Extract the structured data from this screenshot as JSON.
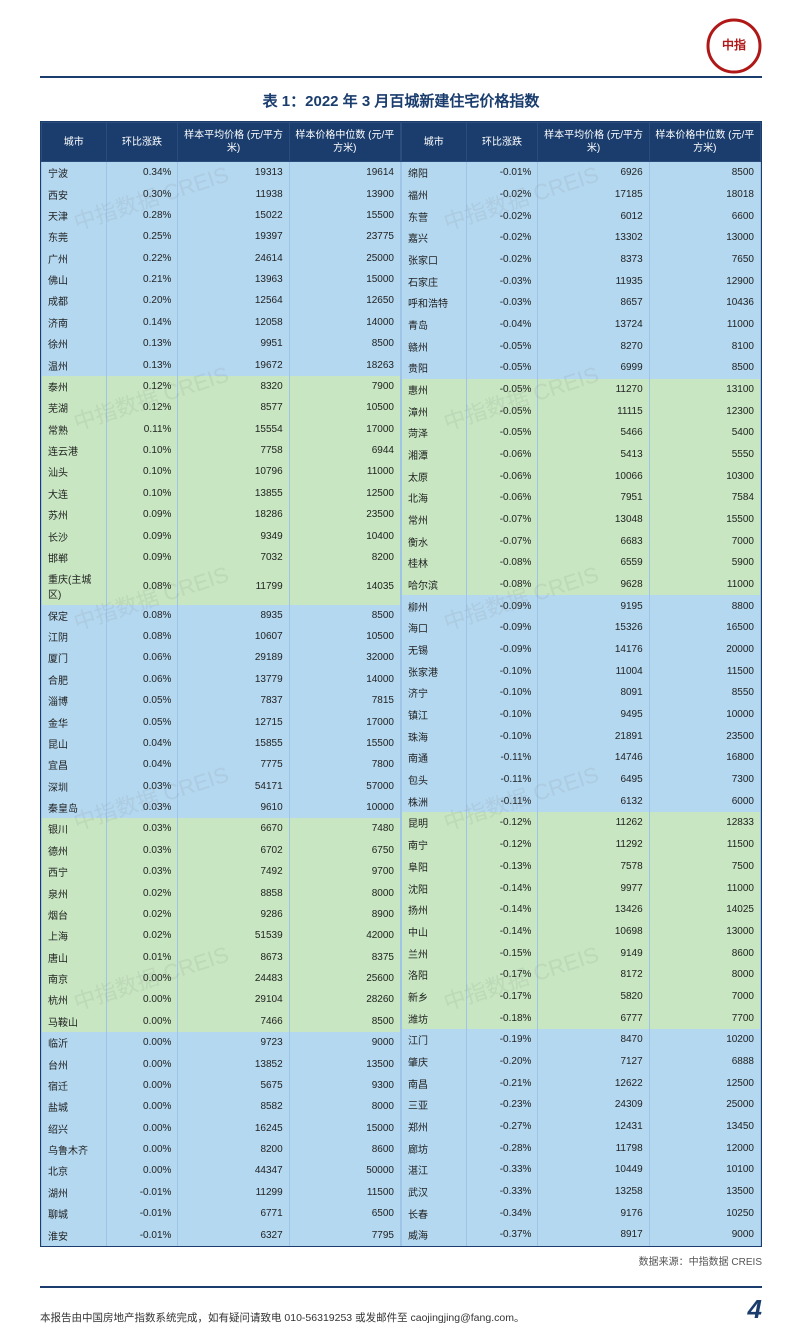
{
  "title": "表 1：2022 年 3 月百城新建住宅价格指数",
  "headers": {
    "city": "城市",
    "chg": "环比涨跌",
    "avg": "样本平均价格\n(元/平方米)",
    "med": "样本价格中位数\n(元/平方米)"
  },
  "colors": {
    "header_bg": "#1a3d6d",
    "header_fg": "#ffffff",
    "row_blue": "#b4d8f0",
    "row_green": "#c7e6c1",
    "divider": "#1a3d6d"
  },
  "watermark_text": "中指数据 CREIS",
  "source": "数据来源：中指数据 CREIS",
  "footer_text": "本报告由中国房地产指数系统完成，如有疑问请致电 010-56319253 或发邮件至 caojingjing@fang.com。",
  "page_number": "4",
  "logo_label": "CHINA INDEX ACADEMY",
  "left": [
    {
      "c": "宁波",
      "p": "0.34%",
      "a": "19313",
      "m": "19614",
      "band": "blue"
    },
    {
      "c": "西安",
      "p": "0.30%",
      "a": "11938",
      "m": "13900",
      "band": "blue"
    },
    {
      "c": "天津",
      "p": "0.28%",
      "a": "15022",
      "m": "15500",
      "band": "blue"
    },
    {
      "c": "东莞",
      "p": "0.25%",
      "a": "19397",
      "m": "23775",
      "band": "blue"
    },
    {
      "c": "广州",
      "p": "0.22%",
      "a": "24614",
      "m": "25000",
      "band": "blue"
    },
    {
      "c": "佛山",
      "p": "0.21%",
      "a": "13963",
      "m": "15000",
      "band": "blue"
    },
    {
      "c": "成都",
      "p": "0.20%",
      "a": "12564",
      "m": "12650",
      "band": "blue"
    },
    {
      "c": "济南",
      "p": "0.14%",
      "a": "12058",
      "m": "14000",
      "band": "blue"
    },
    {
      "c": "徐州",
      "p": "0.13%",
      "a": "9951",
      "m": "8500",
      "band": "blue"
    },
    {
      "c": "温州",
      "p": "0.13%",
      "a": "19672",
      "m": "18263",
      "band": "blue"
    },
    {
      "c": "泰州",
      "p": "0.12%",
      "a": "8320",
      "m": "7900",
      "band": "green"
    },
    {
      "c": "芜湖",
      "p": "0.12%",
      "a": "8577",
      "m": "10500",
      "band": "green"
    },
    {
      "c": "常熟",
      "p": "0.11%",
      "a": "15554",
      "m": "17000",
      "band": "green"
    },
    {
      "c": "连云港",
      "p": "0.10%",
      "a": "7758",
      "m": "6944",
      "band": "green"
    },
    {
      "c": "汕头",
      "p": "0.10%",
      "a": "10796",
      "m": "11000",
      "band": "green"
    },
    {
      "c": "大连",
      "p": "0.10%",
      "a": "13855",
      "m": "12500",
      "band": "green"
    },
    {
      "c": "苏州",
      "p": "0.09%",
      "a": "18286",
      "m": "23500",
      "band": "green"
    },
    {
      "c": "长沙",
      "p": "0.09%",
      "a": "9349",
      "m": "10400",
      "band": "green"
    },
    {
      "c": "邯郸",
      "p": "0.09%",
      "a": "7032",
      "m": "8200",
      "band": "green"
    },
    {
      "c": "重庆(主城区)",
      "p": "0.08%",
      "a": "11799",
      "m": "14035",
      "band": "green"
    },
    {
      "c": "保定",
      "p": "0.08%",
      "a": "8935",
      "m": "8500",
      "band": "blue"
    },
    {
      "c": "江阴",
      "p": "0.08%",
      "a": "10607",
      "m": "10500",
      "band": "blue"
    },
    {
      "c": "厦门",
      "p": "0.06%",
      "a": "29189",
      "m": "32000",
      "band": "blue"
    },
    {
      "c": "合肥",
      "p": "0.06%",
      "a": "13779",
      "m": "14000",
      "band": "blue"
    },
    {
      "c": "淄博",
      "p": "0.05%",
      "a": "7837",
      "m": "7815",
      "band": "blue"
    },
    {
      "c": "金华",
      "p": "0.05%",
      "a": "12715",
      "m": "17000",
      "band": "blue"
    },
    {
      "c": "昆山",
      "p": "0.04%",
      "a": "15855",
      "m": "15500",
      "band": "blue"
    },
    {
      "c": "宜昌",
      "p": "0.04%",
      "a": "7775",
      "m": "7800",
      "band": "blue"
    },
    {
      "c": "深圳",
      "p": "0.03%",
      "a": "54171",
      "m": "57000",
      "band": "blue"
    },
    {
      "c": "秦皇岛",
      "p": "0.03%",
      "a": "9610",
      "m": "10000",
      "band": "blue"
    },
    {
      "c": "银川",
      "p": "0.03%",
      "a": "6670",
      "m": "7480",
      "band": "green"
    },
    {
      "c": "德州",
      "p": "0.03%",
      "a": "6702",
      "m": "6750",
      "band": "green"
    },
    {
      "c": "西宁",
      "p": "0.03%",
      "a": "7492",
      "m": "9700",
      "band": "green"
    },
    {
      "c": "泉州",
      "p": "0.02%",
      "a": "8858",
      "m": "8000",
      "band": "green"
    },
    {
      "c": "烟台",
      "p": "0.02%",
      "a": "9286",
      "m": "8900",
      "band": "green"
    },
    {
      "c": "上海",
      "p": "0.02%",
      "a": "51539",
      "m": "42000",
      "band": "green"
    },
    {
      "c": "唐山",
      "p": "0.01%",
      "a": "8673",
      "m": "8375",
      "band": "green"
    },
    {
      "c": "南京",
      "p": "0.00%",
      "a": "24483",
      "m": "25600",
      "band": "green"
    },
    {
      "c": "杭州",
      "p": "0.00%",
      "a": "29104",
      "m": "28260",
      "band": "green"
    },
    {
      "c": "马鞍山",
      "p": "0.00%",
      "a": "7466",
      "m": "8500",
      "band": "green"
    },
    {
      "c": "临沂",
      "p": "0.00%",
      "a": "9723",
      "m": "9000",
      "band": "blue"
    },
    {
      "c": "台州",
      "p": "0.00%",
      "a": "13852",
      "m": "13500",
      "band": "blue"
    },
    {
      "c": "宿迁",
      "p": "0.00%",
      "a": "5675",
      "m": "9300",
      "band": "blue"
    },
    {
      "c": "盐城",
      "p": "0.00%",
      "a": "8582",
      "m": "8000",
      "band": "blue"
    },
    {
      "c": "绍兴",
      "p": "0.00%",
      "a": "16245",
      "m": "15000",
      "band": "blue"
    },
    {
      "c": "乌鲁木齐",
      "p": "0.00%",
      "a": "8200",
      "m": "8600",
      "band": "blue"
    },
    {
      "c": "北京",
      "p": "0.00%",
      "a": "44347",
      "m": "50000",
      "band": "blue"
    },
    {
      "c": "湖州",
      "p": "-0.01%",
      "a": "11299",
      "m": "11500",
      "band": "blue"
    },
    {
      "c": "聊城",
      "p": "-0.01%",
      "a": "6771",
      "m": "6500",
      "band": "blue"
    },
    {
      "c": "淮安",
      "p": "-0.01%",
      "a": "6327",
      "m": "7795",
      "band": "blue"
    }
  ],
  "right": [
    {
      "c": "绵阳",
      "p": "-0.01%",
      "a": "6926",
      "m": "8500",
      "band": "blue"
    },
    {
      "c": "福州",
      "p": "-0.02%",
      "a": "17185",
      "m": "18018",
      "band": "blue"
    },
    {
      "c": "东营",
      "p": "-0.02%",
      "a": "6012",
      "m": "6600",
      "band": "blue"
    },
    {
      "c": "嘉兴",
      "p": "-0.02%",
      "a": "13302",
      "m": "13000",
      "band": "blue"
    },
    {
      "c": "张家口",
      "p": "-0.02%",
      "a": "8373",
      "m": "7650",
      "band": "blue"
    },
    {
      "c": "石家庄",
      "p": "-0.03%",
      "a": "11935",
      "m": "12900",
      "band": "blue"
    },
    {
      "c": "呼和浩特",
      "p": "-0.03%",
      "a": "8657",
      "m": "10436",
      "band": "blue"
    },
    {
      "c": "青岛",
      "p": "-0.04%",
      "a": "13724",
      "m": "11000",
      "band": "blue"
    },
    {
      "c": "赣州",
      "p": "-0.05%",
      "a": "8270",
      "m": "8100",
      "band": "blue"
    },
    {
      "c": "贵阳",
      "p": "-0.05%",
      "a": "6999",
      "m": "8500",
      "band": "blue"
    },
    {
      "c": "惠州",
      "p": "-0.05%",
      "a": "11270",
      "m": "13100",
      "band": "green"
    },
    {
      "c": "漳州",
      "p": "-0.05%",
      "a": "11115",
      "m": "12300",
      "band": "green"
    },
    {
      "c": "菏泽",
      "p": "-0.05%",
      "a": "5466",
      "m": "5400",
      "band": "green"
    },
    {
      "c": "湘潭",
      "p": "-0.06%",
      "a": "5413",
      "m": "5550",
      "band": "green"
    },
    {
      "c": "太原",
      "p": "-0.06%",
      "a": "10066",
      "m": "10300",
      "band": "green"
    },
    {
      "c": "北海",
      "p": "-0.06%",
      "a": "7951",
      "m": "7584",
      "band": "green"
    },
    {
      "c": "常州",
      "p": "-0.07%",
      "a": "13048",
      "m": "15500",
      "band": "green"
    },
    {
      "c": "衡水",
      "p": "-0.07%",
      "a": "6683",
      "m": "7000",
      "band": "green"
    },
    {
      "c": "桂林",
      "p": "-0.08%",
      "a": "6559",
      "m": "5900",
      "band": "green"
    },
    {
      "c": "哈尔滨",
      "p": "-0.08%",
      "a": "9628",
      "m": "11000",
      "band": "green"
    },
    {
      "c": "柳州",
      "p": "-0.09%",
      "a": "9195",
      "m": "8800",
      "band": "blue"
    },
    {
      "c": "海口",
      "p": "-0.09%",
      "a": "15326",
      "m": "16500",
      "band": "blue"
    },
    {
      "c": "无锡",
      "p": "-0.09%",
      "a": "14176",
      "m": "20000",
      "band": "blue"
    },
    {
      "c": "张家港",
      "p": "-0.10%",
      "a": "11004",
      "m": "11500",
      "band": "blue"
    },
    {
      "c": "济宁",
      "p": "-0.10%",
      "a": "8091",
      "m": "8550",
      "band": "blue"
    },
    {
      "c": "镇江",
      "p": "-0.10%",
      "a": "9495",
      "m": "10000",
      "band": "blue"
    },
    {
      "c": "珠海",
      "p": "-0.10%",
      "a": "21891",
      "m": "23500",
      "band": "blue"
    },
    {
      "c": "南通",
      "p": "-0.11%",
      "a": "14746",
      "m": "16800",
      "band": "blue"
    },
    {
      "c": "包头",
      "p": "-0.11%",
      "a": "6495",
      "m": "7300",
      "band": "blue"
    },
    {
      "c": "株洲",
      "p": "-0.11%",
      "a": "6132",
      "m": "6000",
      "band": "blue"
    },
    {
      "c": "昆明",
      "p": "-0.12%",
      "a": "11262",
      "m": "12833",
      "band": "green"
    },
    {
      "c": "南宁",
      "p": "-0.12%",
      "a": "11292",
      "m": "11500",
      "band": "green"
    },
    {
      "c": "阜阳",
      "p": "-0.13%",
      "a": "7578",
      "m": "7500",
      "band": "green"
    },
    {
      "c": "沈阳",
      "p": "-0.14%",
      "a": "9977",
      "m": "11000",
      "band": "green"
    },
    {
      "c": "扬州",
      "p": "-0.14%",
      "a": "13426",
      "m": "14025",
      "band": "green"
    },
    {
      "c": "中山",
      "p": "-0.14%",
      "a": "10698",
      "m": "13000",
      "band": "green"
    },
    {
      "c": "兰州",
      "p": "-0.15%",
      "a": "9149",
      "m": "8600",
      "band": "green"
    },
    {
      "c": "洛阳",
      "p": "-0.17%",
      "a": "8172",
      "m": "8000",
      "band": "green"
    },
    {
      "c": "新乡",
      "p": "-0.17%",
      "a": "5820",
      "m": "7000",
      "band": "green"
    },
    {
      "c": "潍坊",
      "p": "-0.18%",
      "a": "6777",
      "m": "7700",
      "band": "green"
    },
    {
      "c": "江门",
      "p": "-0.19%",
      "a": "8470",
      "m": "10200",
      "band": "blue"
    },
    {
      "c": "肇庆",
      "p": "-0.20%",
      "a": "7127",
      "m": "6888",
      "band": "blue"
    },
    {
      "c": "南昌",
      "p": "-0.21%",
      "a": "12622",
      "m": "12500",
      "band": "blue"
    },
    {
      "c": "三亚",
      "p": "-0.23%",
      "a": "24309",
      "m": "25000",
      "band": "blue"
    },
    {
      "c": "郑州",
      "p": "-0.27%",
      "a": "12431",
      "m": "13450",
      "band": "blue"
    },
    {
      "c": "廊坊",
      "p": "-0.28%",
      "a": "11798",
      "m": "12000",
      "band": "blue"
    },
    {
      "c": "湛江",
      "p": "-0.33%",
      "a": "10449",
      "m": "10100",
      "band": "blue"
    },
    {
      "c": "武汉",
      "p": "-0.33%",
      "a": "13258",
      "m": "13500",
      "band": "blue"
    },
    {
      "c": "长春",
      "p": "-0.34%",
      "a": "9176",
      "m": "10250",
      "band": "blue"
    },
    {
      "c": "威海",
      "p": "-0.37%",
      "a": "8917",
      "m": "9000",
      "band": "blue"
    }
  ]
}
